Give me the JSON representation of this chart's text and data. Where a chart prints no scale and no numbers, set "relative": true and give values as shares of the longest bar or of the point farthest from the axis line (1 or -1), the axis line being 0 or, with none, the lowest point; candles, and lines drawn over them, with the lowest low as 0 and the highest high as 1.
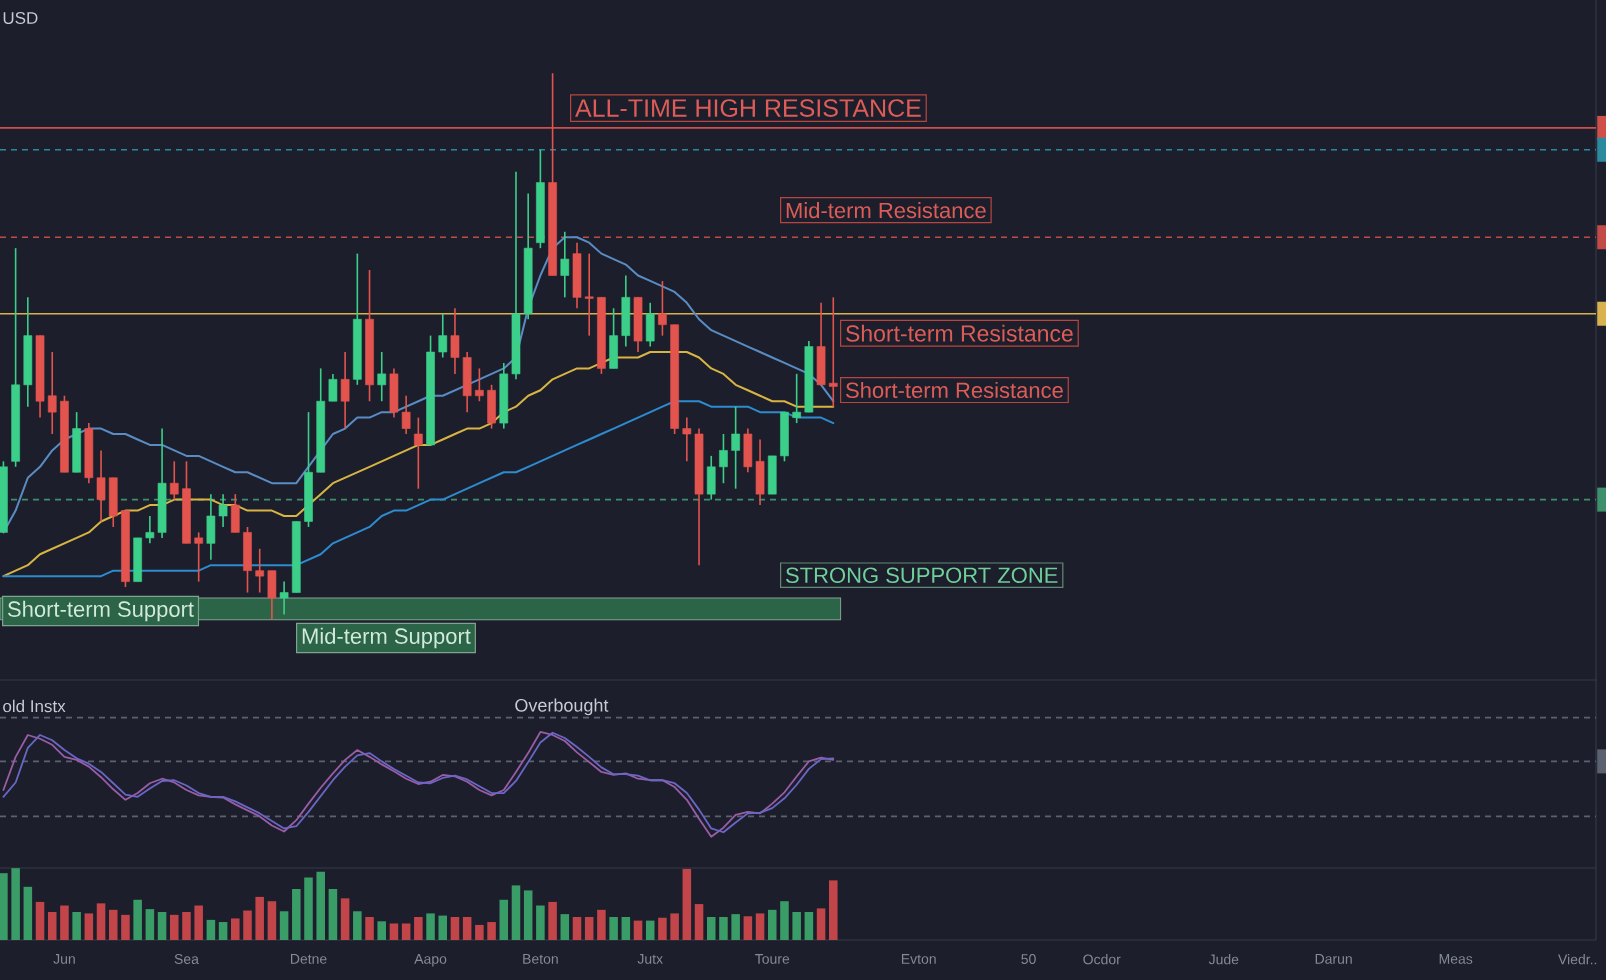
{
  "chart_data": [
    {
      "type": "candlestick",
      "relative": true,
      "title": "USD",
      "categories": [
        null,
        null,
        null,
        null,
        null,
        null,
        null,
        null,
        null,
        null,
        null,
        null,
        null,
        null,
        null,
        null,
        null,
        null,
        null,
        null,
        null,
        null,
        null,
        null,
        null,
        null,
        null,
        null,
        null,
        null,
        null,
        null,
        null,
        null,
        null,
        null,
        null,
        null,
        null,
        null,
        null,
        null,
        null,
        null,
        null,
        null,
        null,
        null,
        null,
        null,
        null,
        null,
        null,
        null,
        null,
        null,
        null,
        null,
        null,
        null,
        null,
        null,
        null,
        null,
        null,
        null,
        null,
        null,
        null,
        null,
        null,
        null,
        null,
        null,
        null,
        null,
        null,
        null,
        null,
        null,
        null,
        null,
        null,
        null,
        null,
        null,
        null,
        null,
        null,
        null,
        null,
        null,
        null,
        null,
        null,
        null,
        null,
        null,
        null,
        null,
        null,
        null,
        null,
        null,
        null,
        null,
        null,
        null,
        null,
        null,
        null,
        null,
        null,
        null,
        null,
        null,
        null,
        null,
        null,
        null,
        null,
        null,
        null,
        null,
        null,
        null,
        null,
        null,
        null,
        null
      ],
      "ohlc": [
        [
          0.16,
          0.29,
          0.16,
          0.28
        ],
        [
          0.29,
          0.68,
          0.28,
          0.43
        ],
        [
          0.43,
          0.59,
          0.39,
          0.52
        ],
        [
          0.52,
          0.52,
          0.37,
          0.4
        ],
        [
          0.41,
          0.49,
          0.34,
          0.38
        ],
        [
          0.4,
          0.41,
          0.27,
          0.27
        ],
        [
          0.27,
          0.38,
          0.27,
          0.35
        ],
        [
          0.35,
          0.36,
          0.25,
          0.26
        ],
        [
          0.26,
          0.31,
          0.18,
          0.22
        ],
        [
          0.26,
          0.26,
          0.17,
          0.19
        ],
        [
          0.2,
          0.2,
          0.06,
          0.07
        ],
        [
          0.07,
          0.15,
          0.07,
          0.15
        ],
        [
          0.15,
          0.19,
          0.14,
          0.16
        ],
        [
          0.16,
          0.35,
          0.15,
          0.25
        ],
        [
          0.25,
          0.29,
          0.22,
          0.23
        ],
        [
          0.24,
          0.29,
          0.14,
          0.14
        ],
        [
          0.15,
          0.16,
          0.07,
          0.14
        ],
        [
          0.14,
          0.23,
          0.11,
          0.19
        ],
        [
          0.19,
          0.23,
          0.17,
          0.21
        ],
        [
          0.21,
          0.23,
          0.16,
          0.16
        ],
        [
          0.16,
          0.17,
          0.05,
          0.09
        ],
        [
          0.09,
          0.13,
          0.05,
          0.08
        ],
        [
          0.09,
          0.09,
          0,
          0.04
        ],
        [
          0.04,
          0.07,
          0.01,
          0.05
        ],
        [
          0.05,
          0.18,
          0.05,
          0.18
        ],
        [
          0.18,
          0.38,
          0.17,
          0.27
        ],
        [
          0.27,
          0.46,
          0.27,
          0.4
        ],
        [
          0.4,
          0.45,
          0.4,
          0.44
        ],
        [
          0.44,
          0.49,
          0.35,
          0.4
        ],
        [
          0.44,
          0.67,
          0.43,
          0.55
        ],
        [
          0.55,
          0.64,
          0.4,
          0.43
        ],
        [
          0.43,
          0.49,
          0.4,
          0.45
        ],
        [
          0.45,
          0.46,
          0.37,
          0.38
        ],
        [
          0.38,
          0.41,
          0.34,
          0.35
        ],
        [
          0.34,
          0.37,
          0.24,
          0.32
        ],
        [
          0.32,
          0.52,
          0.32,
          0.49
        ],
        [
          0.49,
          0.56,
          0.48,
          0.52
        ],
        [
          0.52,
          0.57,
          0.45,
          0.48
        ],
        [
          0.48,
          0.49,
          0.38,
          0.41
        ],
        [
          0.42,
          0.46,
          0.4,
          0.41
        ],
        [
          0.42,
          0.43,
          0.35,
          0.36
        ],
        [
          0.36,
          0.47,
          0.35,
          0.45
        ],
        [
          0.45,
          0.82,
          0.44,
          0.56
        ],
        [
          0.56,
          0.78,
          0.55,
          0.68
        ],
        [
          0.69,
          0.86,
          0.68,
          0.8
        ],
        [
          0.8,
          1,
          0.63,
          0.63
        ],
        [
          0.63,
          0.71,
          0.59,
          0.66
        ],
        [
          0.67,
          0.69,
          0.57,
          0.59
        ],
        [
          0.591,
          0.67,
          0.52,
          0.588
        ],
        [
          0.59,
          0.59,
          0.45,
          0.46
        ],
        [
          0.46,
          0.57,
          0.46,
          0.52
        ],
        [
          0.52,
          0.63,
          0.5,
          0.59
        ],
        [
          0.59,
          0.59,
          0.49,
          0.51
        ],
        [
          0.51,
          0.58,
          0.5,
          0.56
        ],
        [
          0.56,
          0.62,
          0.52,
          0.54
        ],
        [
          0.54,
          0.54,
          0.34,
          0.35
        ],
        [
          0.35,
          0.37,
          0.29,
          0.34
        ],
        [
          0.34,
          0.35,
          0.1,
          0.23
        ],
        [
          0.23,
          0.3,
          0.22,
          0.28
        ],
        [
          0.28,
          0.34,
          0.25,
          0.31
        ],
        [
          0.31,
          0.39,
          0.24,
          0.34
        ],
        [
          0.34,
          0.35,
          0.27,
          0.28
        ],
        [
          0.29,
          0.33,
          0.21,
          0.23
        ],
        [
          0.23,
          0.3,
          0.23,
          0.3
        ],
        [
          0.3,
          0.38,
          0.29,
          0.38
        ],
        [
          0.37,
          0.45,
          0.36,
          0.38
        ],
        [
          0.38,
          0.51,
          0.38,
          0.5
        ],
        [
          0.5,
          0.58,
          0.43,
          0.43
        ],
        [
          0.433,
          0.59,
          0.39,
          0.427
        ],
        null,
        null,
        null,
        null,
        null,
        null,
        null,
        null,
        null,
        null,
        null,
        null,
        null,
        null,
        null,
        null,
        null,
        null,
        null,
        null,
        null,
        null,
        null,
        null,
        null,
        null,
        null,
        null,
        null,
        null,
        null,
        null,
        null,
        null,
        null,
        null,
        null,
        null,
        null,
        null,
        null,
        null,
        null,
        null,
        null,
        null,
        null,
        null,
        null,
        null,
        null,
        null,
        null,
        null,
        null,
        null,
        null,
        null,
        null,
        null,
        null
      ],
      "colors": [
        "#3ccf8a",
        "#3ccf8a",
        "#3ccf8a",
        "#e3544e",
        "#e3544e",
        "#e3544e",
        "#3ccf8a",
        "#e3544e",
        "#e3544e",
        "#e3544e",
        "#e3544e",
        "#3ccf8a",
        "#3ccf8a",
        "#3ccf8a",
        "#e3544e",
        "#e3544e",
        "#e3544e",
        "#3ccf8a",
        "#3ccf8a",
        "#e3544e",
        "#e3544e",
        "#e3544e",
        "#e3544e",
        "#3ccf8a",
        "#3ccf8a",
        "#3ccf8a",
        "#3ccf8a",
        "#3ccf8a",
        "#e3544e",
        "#3ccf8a",
        "#e3544e",
        "#3ccf8a",
        "#e3544e",
        "#e3544e",
        "#e3544e",
        "#3ccf8a",
        "#3ccf8a",
        "#e3544e",
        "#e3544e",
        "#e3544e",
        "#e3544e",
        "#3ccf8a",
        "#3ccf8a",
        "#3ccf8a",
        "#3ccf8a",
        "#e3544e",
        "#3ccf8a",
        "#e3544e",
        "#e3544e",
        "#e3544e",
        "#3ccf8a",
        "#3ccf8a",
        "#e3544e",
        "#3ccf8a",
        "#e3544e",
        "#e3544e",
        "#e3544e",
        "#e3544e",
        "#3ccf8a",
        "#3ccf8a",
        "#3ccf8a",
        "#e3544e",
        "#e3544e",
        "#3ccf8a",
        "#3ccf8a",
        "#3ccf8a",
        "#3ccf8a",
        "#e3544e",
        "#e3544e",
        null,
        null,
        null,
        null,
        null,
        null,
        null,
        null,
        null,
        null,
        null,
        null,
        null,
        null,
        null,
        null,
        null,
        null,
        null,
        null,
        null,
        null,
        null,
        null,
        null,
        null,
        null,
        null,
        null,
        null,
        null,
        null,
        null,
        null,
        null,
        null,
        null,
        null,
        null,
        null,
        null,
        null,
        null,
        null,
        null,
        null,
        null,
        null,
        null,
        null,
        null,
        null,
        null,
        null,
        null,
        null,
        null,
        null,
        null,
        null,
        null
      ],
      "series": [
        {
          "type": "line",
          "color": "#5a8cc4",
          "values": [
            0.16,
            0.2,
            0.26,
            0.28,
            0.31,
            0.33,
            0.34,
            0.35,
            0.35,
            0.34,
            0.34,
            0.33,
            0.32,
            0.32,
            0.31,
            0.3,
            0.3,
            0.29,
            0.28,
            0.27,
            0.27,
            0.26,
            0.25,
            0.25,
            0.25,
            0.28,
            0.31,
            0.34,
            0.35,
            0.37,
            0.37,
            0.38,
            0.38,
            0.39,
            0.4,
            0.41,
            0.41,
            0.42,
            0.43,
            0.44,
            0.45,
            0.46,
            0.48,
            0.57,
            0.63,
            0.68,
            0.7,
            0.7,
            0.69,
            0.67,
            0.66,
            0.65,
            0.63,
            0.62,
            0.61,
            0.6,
            0.58,
            0.55,
            0.53,
            0.52,
            0.51,
            0.5,
            0.49,
            0.48,
            0.47,
            0.46,
            0.45,
            0.43,
            0.4,
            null,
            null,
            null,
            null,
            null,
            null,
            null,
            null,
            null,
            null,
            null,
            null,
            null,
            null,
            null,
            null,
            null,
            null,
            null,
            null,
            null,
            null,
            null,
            null,
            null,
            null,
            null,
            null,
            null,
            null,
            null,
            null,
            null,
            null,
            null,
            null,
            null,
            null,
            null,
            null,
            null,
            null,
            null,
            null,
            null,
            null,
            null,
            null,
            null,
            null,
            null,
            null,
            null,
            null,
            null,
            null,
            null,
            null,
            null,
            null,
            null
          ]
        },
        {
          "type": "line",
          "color": "#d8b443",
          "values": [
            0.08,
            0.09,
            0.1,
            0.12,
            0.13,
            0.14,
            0.15,
            0.16,
            0.18,
            0.19,
            0.2,
            0.2,
            0.21,
            0.21,
            0.22,
            0.22,
            0.22,
            0.22,
            0.21,
            0.21,
            0.2,
            0.2,
            0.2,
            0.19,
            0.19,
            0.21,
            0.23,
            0.25,
            0.26,
            0.27,
            0.28,
            0.29,
            0.3,
            0.31,
            0.32,
            0.32,
            0.33,
            0.34,
            0.35,
            0.35,
            0.36,
            0.38,
            0.39,
            0.41,
            0.42,
            0.44,
            0.45,
            0.46,
            0.46,
            0.47,
            0.48,
            0.48,
            0.48,
            0.49,
            0.49,
            0.49,
            0.49,
            0.48,
            0.46,
            0.45,
            0.43,
            0.42,
            0.41,
            0.4,
            0.4,
            0.39,
            0.39,
            0.39,
            0.39,
            null,
            null,
            null,
            null,
            null,
            null,
            null,
            null,
            null,
            null,
            null,
            null,
            null,
            null,
            null,
            null,
            null,
            null,
            null,
            null,
            null,
            null,
            null,
            null,
            null,
            null,
            null,
            null,
            null,
            null,
            null,
            null,
            null,
            null,
            null,
            null,
            null,
            null,
            null,
            null,
            null,
            null,
            null,
            null,
            null,
            null,
            null,
            null,
            null,
            null,
            null,
            null,
            null,
            null,
            null,
            null,
            null,
            null,
            null,
            null,
            null
          ]
        },
        {
          "type": "line",
          "color": "#2d8bd0",
          "values": [
            0.08,
            0.08,
            0.08,
            0.08,
            0.08,
            0.08,
            0.08,
            0.08,
            0.08,
            0.09,
            0.09,
            0.09,
            0.09,
            0.09,
            0.09,
            0.09,
            0.09,
            0.1,
            0.1,
            0.1,
            0.1,
            0.1,
            0.1,
            0.1,
            0.1,
            0.11,
            0.12,
            0.14,
            0.15,
            0.16,
            0.17,
            0.19,
            0.2,
            0.2,
            0.21,
            0.22,
            0.22,
            0.23,
            0.24,
            0.25,
            0.26,
            0.27,
            0.27,
            0.28,
            0.29,
            0.3,
            0.31,
            0.32,
            0.33,
            0.34,
            0.35,
            0.36,
            0.37,
            0.38,
            0.39,
            0.4,
            0.4,
            0.4,
            0.39,
            0.39,
            0.39,
            0.39,
            0.38,
            0.38,
            0.38,
            0.37,
            0.37,
            0.37,
            0.36,
            null,
            null,
            null,
            null,
            null,
            null,
            null,
            null,
            null,
            null,
            null,
            null,
            null,
            null,
            null,
            null,
            null,
            null,
            null,
            null,
            null,
            null,
            null,
            null,
            null,
            null,
            null,
            null,
            null,
            null,
            null,
            null,
            null,
            null,
            null,
            null,
            null,
            null,
            null,
            null,
            null,
            null,
            null,
            null,
            null,
            null,
            null,
            null,
            null,
            null,
            null,
            null,
            null,
            null,
            null,
            null,
            null,
            null,
            null,
            null,
            null
          ]
        }
      ],
      "ref_lines": [
        {
          "axis": "y",
          "value": 0.9,
          "label": "ALL-TIME HIGH RESISTANCE",
          "color": "#cf4f4a",
          "line_style": "solid"
        },
        {
          "axis": "y",
          "value": 0.86,
          "color": "#2b8a9e",
          "line_style": "dashed"
        },
        {
          "axis": "y",
          "value": 0.7,
          "label": "Mid-term Resistance",
          "color": "#c24a47",
          "line_style": "dashed"
        },
        {
          "axis": "y",
          "value": 0.56,
          "label": "Short-term Resistance",
          "color": "#d9b24f",
          "line_style": "solid"
        },
        {
          "axis": "y",
          "value": 0.22,
          "color": "#3e8f6c",
          "line_style": "dashed"
        }
      ],
      "bands": [
        {
          "axis": "y",
          "from": 0,
          "to": 0.04,
          "label": "STRONG SUPPORT ZONE",
          "color": "#2b6446"
        }
      ],
      "annotations": [
        "Short-term Resistance",
        "Short-term Support",
        "Mid-term Support"
      ]
    },
    {
      "type": "line",
      "relative": true,
      "title": "old Instx",
      "categories": [
        null,
        null,
        null,
        null,
        null,
        null,
        null,
        null,
        null,
        null,
        null,
        null,
        null,
        null,
        null,
        null,
        null,
        null,
        null,
        null,
        null,
        null,
        null,
        null,
        null,
        null,
        null,
        null,
        null,
        null,
        null,
        null,
        null,
        null,
        null,
        null,
        null,
        null,
        null,
        null,
        null,
        null,
        null,
        null,
        null,
        null,
        null,
        null,
        null,
        null,
        null,
        null,
        null,
        null,
        null,
        null,
        null,
        null,
        null,
        null,
        null,
        null,
        null,
        null,
        null,
        null,
        null,
        null,
        null,
        null,
        null,
        null,
        null,
        null,
        null,
        null,
        null,
        null,
        null,
        null,
        null,
        null,
        null,
        null,
        null,
        null,
        null,
        null,
        null,
        null,
        null,
        null,
        null,
        null,
        null,
        null,
        null,
        null,
        null,
        null,
        null,
        null,
        null,
        null,
        null,
        null,
        null,
        null,
        null,
        null,
        null,
        null,
        null,
        null,
        null,
        null,
        null,
        null,
        null,
        null,
        null,
        null,
        null,
        null,
        null,
        null,
        null,
        null,
        null,
        null
      ],
      "series": [
        {
          "color": "#9b5ca6",
          "values": [
            -0.38,
            0.06,
            0.35,
            0.3,
            0.22,
            0.06,
            0.02,
            -0.07,
            -0.21,
            -0.37,
            -0.51,
            -0.42,
            -0.29,
            -0.23,
            -0.28,
            -0.38,
            -0.45,
            -0.47,
            -0.48,
            -0.57,
            -0.65,
            -0.73,
            -0.85,
            -0.93,
            -0.78,
            -0.56,
            -0.35,
            -0.16,
            0.02,
            0.15,
            0.06,
            -0.04,
            -0.13,
            -0.23,
            -0.3,
            -0.27,
            -0.18,
            -0.2,
            -0.27,
            -0.38,
            -0.45,
            -0.38,
            -0.14,
            0.11,
            0.39,
            0.35,
            0.27,
            0.12,
            -0.01,
            -0.14,
            -0.18,
            -0.16,
            -0.23,
            -0.25,
            -0.25,
            -0.34,
            -0.51,
            -0.76,
            -1,
            -0.88,
            -0.71,
            -0.67,
            -0.69,
            -0.56,
            -0.41,
            -0.2,
            0,
            0.05,
            0.02,
            null,
            null,
            null,
            null,
            null,
            null,
            null,
            null,
            null,
            null,
            null,
            null,
            null,
            null,
            null,
            null,
            null,
            null,
            null,
            null,
            null,
            null,
            null,
            null,
            null,
            null,
            null,
            null,
            null,
            null,
            null,
            null,
            null,
            null,
            null,
            null,
            null,
            null,
            null,
            null,
            null,
            null,
            null,
            null,
            null,
            null,
            null,
            null,
            null,
            null,
            null,
            null,
            null,
            null,
            null,
            null,
            null,
            null,
            null,
            null,
            null
          ]
        },
        {
          "color": "#6a66c6",
          "values": [
            -0.47,
            -0.28,
            0.18,
            0.35,
            0.28,
            0.15,
            0.04,
            -0.03,
            -0.14,
            -0.29,
            -0.44,
            -0.47,
            -0.36,
            -0.26,
            -0.25,
            -0.32,
            -0.42,
            -0.47,
            -0.47,
            -0.53,
            -0.61,
            -0.69,
            -0.79,
            -0.89,
            -0.86,
            -0.67,
            -0.46,
            -0.25,
            -0.07,
            0.08,
            0.11,
            0,
            -0.1,
            -0.19,
            -0.28,
            -0.29,
            -0.22,
            -0.19,
            -0.24,
            -0.33,
            -0.42,
            -0.42,
            -0.26,
            -0.01,
            0.25,
            0.38,
            0.31,
            0.19,
            0.06,
            -0.08,
            -0.17,
            -0.17,
            -0.19,
            -0.25,
            -0.25,
            -0.29,
            -0.42,
            -0.64,
            -0.89,
            -0.94,
            -0.81,
            -0.69,
            -0.68,
            -0.62,
            -0.49,
            -0.31,
            -0.1,
            0.03,
            0.04,
            null,
            null,
            null,
            null,
            null,
            null,
            null,
            null,
            null,
            null,
            null,
            null,
            null,
            null,
            null,
            null,
            null,
            null,
            null,
            null,
            null,
            null,
            null,
            null,
            null,
            null,
            null,
            null,
            null,
            null,
            null,
            null,
            null,
            null,
            null,
            null,
            null,
            null,
            null,
            null,
            null,
            null,
            null,
            null,
            null,
            null,
            null,
            null,
            null,
            null,
            null,
            null,
            null,
            null,
            null,
            null,
            null,
            null,
            null,
            null,
            null
          ]
        }
      ],
      "ref_lines": [
        {
          "axis": "y",
          "value": 0.58,
          "label": "Overbought",
          "color": "#5c6170",
          "line_style": "dashed"
        },
        {
          "axis": "y",
          "value": 0,
          "color": "#5c6170",
          "line_style": "dashed"
        },
        {
          "axis": "y",
          "value": -0.73,
          "color": "#5c6170",
          "line_style": "dashed"
        }
      ]
    },
    {
      "type": "bar",
      "relative": true,
      "categories": [
        null,
        null,
        null,
        null,
        null,
        "Jun",
        null,
        null,
        null,
        null,
        null,
        null,
        null,
        null,
        null,
        "Sea",
        null,
        null,
        null,
        null,
        null,
        null,
        null,
        null,
        null,
        "Detne",
        null,
        null,
        null,
        null,
        null,
        null,
        null,
        null,
        null,
        "Aapo",
        null,
        null,
        null,
        null,
        null,
        null,
        null,
        null,
        "Beton",
        null,
        null,
        null,
        null,
        null,
        null,
        null,
        null,
        "Jutx",
        null,
        null,
        null,
        null,
        null,
        null,
        null,
        null,
        null,
        "Toure",
        null,
        null,
        null,
        null,
        null,
        null,
        null,
        null,
        null,
        null,
        null,
        "Evton",
        null,
        null,
        null,
        null,
        null,
        null,
        null,
        null,
        "50",
        null,
        null,
        null,
        null,
        null,
        "Ocdor",
        null,
        null,
        null,
        null,
        null,
        null,
        null,
        null,
        null,
        "Jude",
        null,
        null,
        null,
        null,
        null,
        null,
        null,
        null,
        "Darun",
        null,
        null,
        null,
        null,
        null,
        null,
        null,
        null,
        null,
        "Meas",
        null,
        null,
        null,
        null,
        null,
        null,
        null,
        null,
        null,
        "Viedr.."
      ],
      "values": [
        0.93,
        1,
        0.74,
        0.53,
        0.39,
        0.48,
        0.39,
        0.37,
        0.51,
        0.42,
        0.35,
        0.56,
        0.43,
        0.39,
        0.35,
        0.39,
        0.48,
        0.28,
        0.25,
        0.3,
        0.41,
        0.6,
        0.54,
        0.4,
        0.71,
        0.87,
        0.95,
        0.71,
        0.58,
        0.4,
        0.32,
        0.26,
        0.23,
        0.23,
        0.32,
        0.37,
        0.34,
        0.32,
        0.32,
        0.21,
        0.25,
        0.56,
        0.76,
        0.69,
        0.48,
        0.53,
        0.36,
        0.32,
        0.32,
        0.42,
        0.32,
        0.32,
        0.27,
        0.27,
        0.31,
        0.37,
        0.99,
        0.5,
        0.32,
        0.32,
        0.36,
        0.33,
        0.37,
        0.42,
        0.54,
        0.39,
        0.39,
        0.44,
        0.83,
        null,
        null,
        null,
        null,
        null,
        null,
        null,
        null,
        null,
        null,
        null,
        null,
        null,
        null,
        null,
        null,
        null,
        null,
        null,
        null,
        null,
        null,
        null,
        null,
        null,
        null,
        null,
        null,
        null,
        null,
        null,
        null,
        null,
        null,
        null,
        null,
        null,
        null,
        null,
        null,
        null,
        null,
        null,
        null,
        null,
        null,
        null,
        null,
        null,
        null,
        null,
        null,
        null,
        null,
        null,
        null,
        null,
        null,
        null,
        null,
        null
      ],
      "colors": [
        "#3a9d68",
        "#3a9d68",
        "#3a9d68",
        "#c2454a",
        "#c2454a",
        "#c2454a",
        "#3a9d68",
        "#c2454a",
        "#c2454a",
        "#c2454a",
        "#c2454a",
        "#3a9d68",
        "#3a9d68",
        "#3a9d68",
        "#c2454a",
        "#c2454a",
        "#c2454a",
        "#3a9d68",
        "#3a9d68",
        "#c2454a",
        "#c2454a",
        "#c2454a",
        "#c2454a",
        "#3a9d68",
        "#3a9d68",
        "#3a9d68",
        "#3a9d68",
        "#3a9d68",
        "#c2454a",
        "#3a9d68",
        "#c2454a",
        "#3a9d68",
        "#c2454a",
        "#c2454a",
        "#c2454a",
        "#3a9d68",
        "#3a9d68",
        "#c2454a",
        "#c2454a",
        "#c2454a",
        "#c2454a",
        "#3a9d68",
        "#3a9d68",
        "#3a9d68",
        "#3a9d68",
        "#c2454a",
        "#3a9d68",
        "#c2454a",
        "#c2454a",
        "#c2454a",
        "#3a9d68",
        "#3a9d68",
        "#c2454a",
        "#3a9d68",
        "#c2454a",
        "#c2454a",
        "#c2454a",
        "#c2454a",
        "#3a9d68",
        "#3a9d68",
        "#3a9d68",
        "#c2454a",
        "#c2454a",
        "#3a9d68",
        "#3a9d68",
        "#3a9d68",
        "#3a9d68",
        "#c2454a",
        "#c2454a",
        null,
        null,
        null,
        null,
        null,
        null,
        null,
        null,
        null,
        null,
        null,
        null,
        null,
        null,
        null,
        null,
        null,
        null,
        null,
        null,
        null,
        null,
        null,
        null,
        null,
        null,
        null,
        null,
        null,
        null,
        null,
        null,
        null,
        null,
        null,
        null,
        null,
        null,
        null,
        null,
        null,
        null,
        null,
        null,
        null,
        null,
        null,
        null,
        null,
        null,
        null,
        null,
        null,
        null,
        null,
        null,
        null,
        null,
        null,
        null,
        null
      ]
    }
  ]
}
